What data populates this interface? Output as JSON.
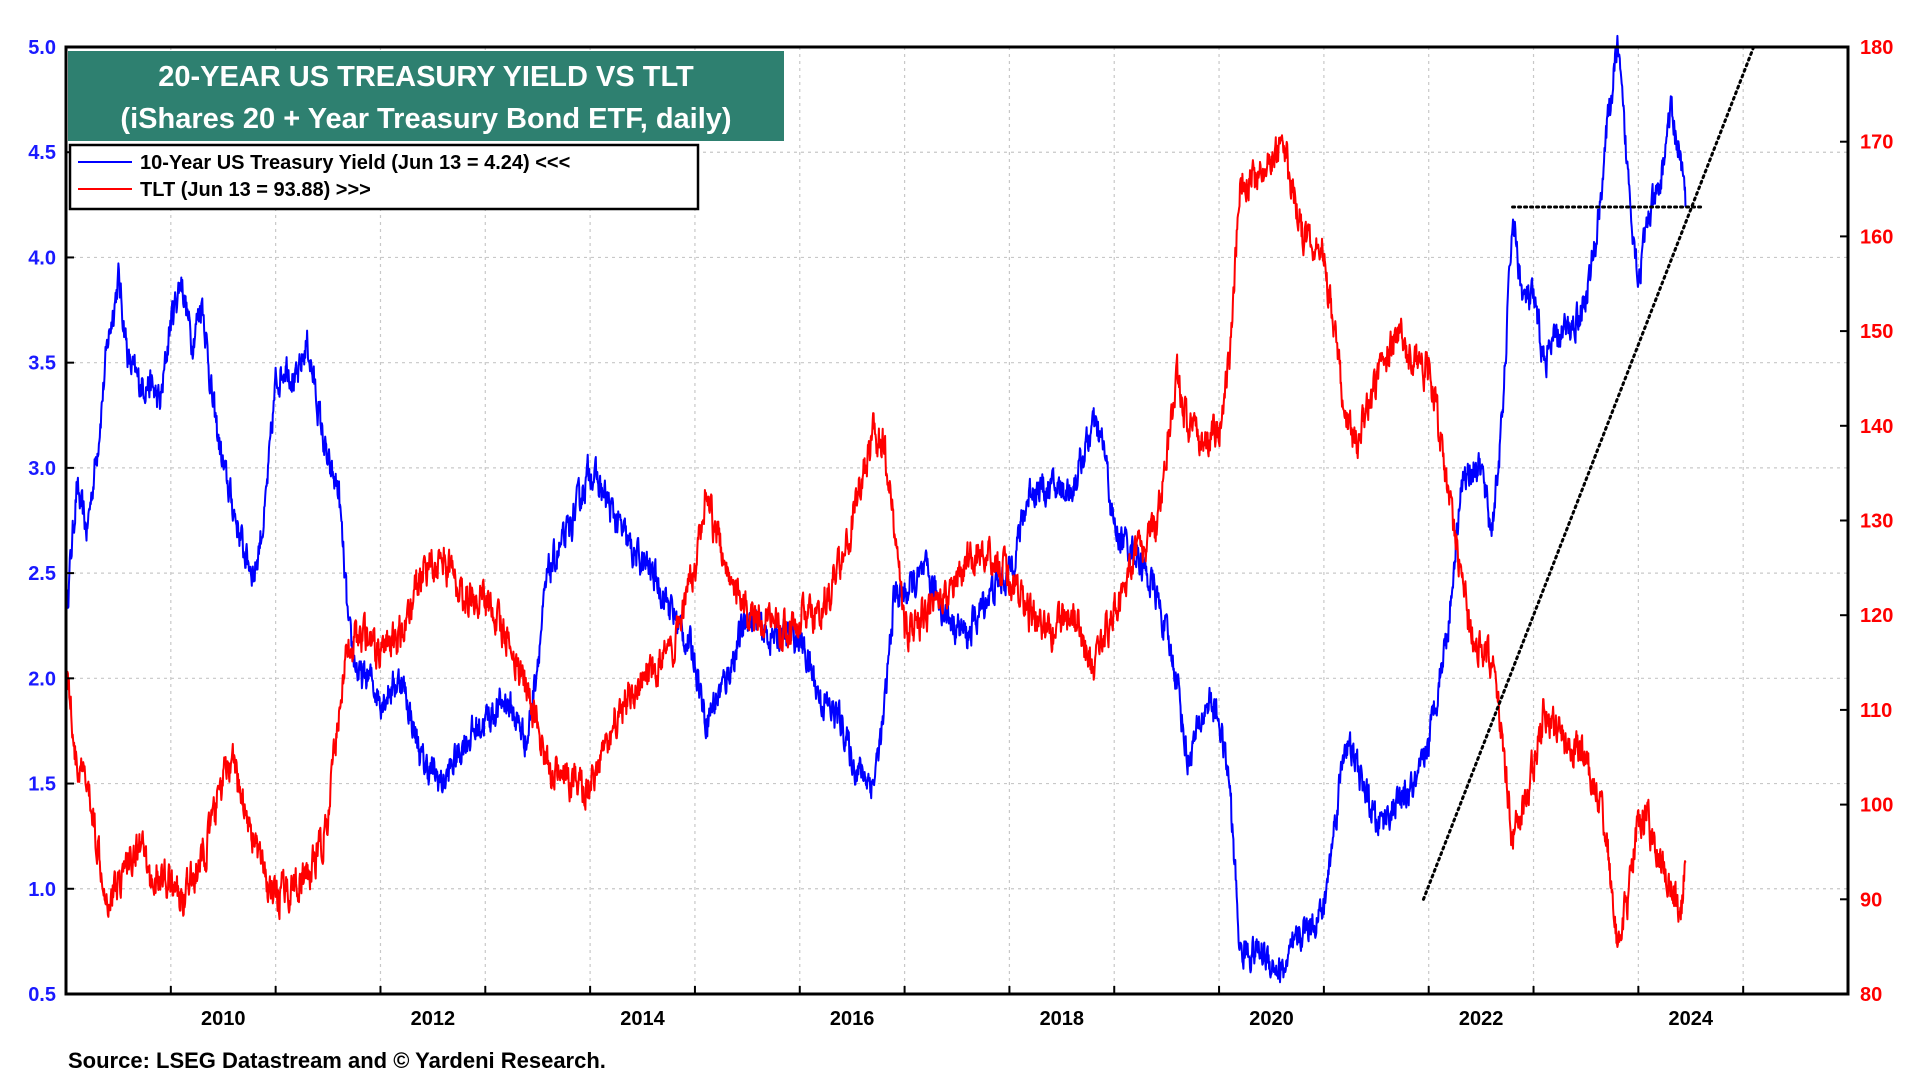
{
  "chart_data": {
    "type": "line",
    "title": "20-YEAR US TREASURY YIELD VS TLT",
    "subtitle": "(iShares 20 + Year Treasury Bond ETF, daily)",
    "source": "Source: LSEG Datastream and © Yardeni Research.",
    "x_range": [
      2009.0,
      2026.0
    ],
    "x_ticks": [
      "2010",
      "2012",
      "2014",
      "2016",
      "2018",
      "2020",
      "2022",
      "2024"
    ],
    "y_left": {
      "range": [
        0.5,
        5.0
      ],
      "ticks": [
        "0.5",
        "1.0",
        "1.5",
        "2.0",
        "2.5",
        "3.0",
        "3.5",
        "4.0",
        "4.5",
        "5.0"
      ]
    },
    "y_right": {
      "range": [
        80,
        180
      ],
      "ticks": [
        "80",
        "90",
        "100",
        "110",
        "120",
        "130",
        "140",
        "150",
        "160",
        "170",
        "180"
      ]
    },
    "grid": true,
    "legend": {
      "position": "top-left",
      "entries": [
        "10-Year US Treasury Yield (Jun 13 = 4.24) <<<",
        "TLT (Jun 13 = 93.88) >>>"
      ]
    },
    "colors": {
      "yield": "#0000ff",
      "tlt": "#ff0000",
      "title_bg": "#2e8070",
      "trend": "#000000"
    },
    "series": [
      {
        "name": "10-Year US Treasury Yield",
        "axis": "left",
        "x": [
          2009.0,
          2009.1,
          2009.2,
          2009.3,
          2009.4,
          2009.5,
          2009.6,
          2009.7,
          2009.8,
          2009.9,
          2010.0,
          2010.1,
          2010.2,
          2010.3,
          2010.4,
          2010.5,
          2010.6,
          2010.7,
          2010.8,
          2010.9,
          2011.0,
          2011.1,
          2011.2,
          2011.3,
          2011.4,
          2011.5,
          2011.6,
          2011.7,
          2011.8,
          2011.9,
          2012.0,
          2012.2,
          2012.4,
          2012.6,
          2012.8,
          2013.0,
          2013.2,
          2013.4,
          2013.6,
          2013.8,
          2014.0,
          2014.2,
          2014.4,
          2014.6,
          2014.8,
          2015.0,
          2015.1,
          2015.3,
          2015.5,
          2015.7,
          2015.9,
          2016.0,
          2016.2,
          2016.4,
          2016.5,
          2016.7,
          2016.8,
          2016.9,
          2017.0,
          2017.2,
          2017.4,
          2017.6,
          2017.8,
          2018.0,
          2018.2,
          2018.4,
          2018.6,
          2018.8,
          2018.9,
          2019.0,
          2019.2,
          2019.4,
          2019.6,
          2019.7,
          2019.9,
          2020.0,
          2020.1,
          2020.2,
          2020.4,
          2020.6,
          2020.8,
          2021.0,
          2021.2,
          2021.3,
          2021.5,
          2021.7,
          2021.9,
          2022.0,
          2022.1,
          2022.2,
          2022.3,
          2022.4,
          2022.5,
          2022.6,
          2022.7,
          2022.8,
          2022.9,
          2023.0,
          2023.1,
          2023.2,
          2023.4,
          2023.5,
          2023.6,
          2023.7,
          2023.8,
          2023.9,
          2024.0,
          2024.1,
          2024.2,
          2024.3,
          2024.4,
          2024.45
        ],
        "values": [
          2.3,
          2.9,
          2.7,
          3.1,
          3.6,
          3.9,
          3.5,
          3.4,
          3.4,
          3.3,
          3.7,
          3.9,
          3.6,
          3.8,
          3.3,
          3.0,
          2.8,
          2.6,
          2.5,
          2.8,
          3.4,
          3.5,
          3.4,
          3.6,
          3.3,
          3.0,
          2.9,
          2.2,
          2.0,
          2.0,
          1.9,
          2.0,
          1.6,
          1.5,
          1.7,
          1.8,
          1.9,
          1.7,
          2.5,
          2.7,
          3.0,
          2.8,
          2.6,
          2.5,
          2.3,
          2.1,
          1.8,
          2.0,
          2.3,
          2.2,
          2.2,
          2.2,
          1.9,
          1.8,
          1.6,
          1.5,
          1.8,
          2.4,
          2.4,
          2.5,
          2.3,
          2.2,
          2.4,
          2.5,
          2.9,
          2.9,
          2.9,
          3.2,
          3.1,
          2.7,
          2.6,
          2.4,
          2.0,
          1.6,
          1.9,
          1.8,
          1.5,
          0.7,
          0.7,
          0.6,
          0.8,
          0.9,
          1.7,
          1.6,
          1.3,
          1.4,
          1.5,
          1.7,
          2.0,
          2.3,
          2.9,
          3.0,
          3.0,
          2.7,
          3.2,
          4.2,
          3.8,
          3.8,
          3.5,
          3.6,
          3.7,
          3.8,
          4.1,
          4.6,
          5.0,
          4.4,
          3.9,
          4.2,
          4.3,
          4.7,
          4.5,
          4.24
        ]
      },
      {
        "name": "TLT",
        "axis": "right",
        "x": [
          2009.0,
          2009.1,
          2009.2,
          2009.3,
          2009.4,
          2009.5,
          2009.6,
          2009.7,
          2009.8,
          2009.9,
          2010.0,
          2010.1,
          2010.2,
          2010.3,
          2010.4,
          2010.5,
          2010.6,
          2010.7,
          2010.8,
          2010.9,
          2011.0,
          2011.1,
          2011.2,
          2011.3,
          2011.4,
          2011.5,
          2011.6,
          2011.7,
          2011.8,
          2011.9,
          2012.0,
          2012.2,
          2012.4,
          2012.6,
          2012.8,
          2013.0,
          2013.2,
          2013.4,
          2013.6,
          2013.8,
          2014.0,
          2014.2,
          2014.4,
          2014.6,
          2014.8,
          2015.0,
          2015.1,
          2015.3,
          2015.5,
          2015.7,
          2015.9,
          2016.0,
          2016.2,
          2016.4,
          2016.5,
          2016.7,
          2016.8,
          2016.9,
          2017.0,
          2017.2,
          2017.4,
          2017.6,
          2017.8,
          2018.0,
          2018.2,
          2018.4,
          2018.6,
          2018.8,
          2018.9,
          2019.0,
          2019.2,
          2019.4,
          2019.6,
          2019.7,
          2019.9,
          2020.0,
          2020.1,
          2020.2,
          2020.4,
          2020.6,
          2020.8,
          2021.0,
          2021.2,
          2021.3,
          2021.5,
          2021.7,
          2021.9,
          2022.0,
          2022.1,
          2022.2,
          2022.3,
          2022.4,
          2022.5,
          2022.6,
          2022.7,
          2022.8,
          2022.9,
          2023.0,
          2023.1,
          2023.2,
          2023.4,
          2023.5,
          2023.6,
          2023.7,
          2023.8,
          2023.9,
          2024.0,
          2024.1,
          2024.2,
          2024.3,
          2024.4,
          2024.45
        ],
        "values": [
          116,
          104,
          102,
          96,
          90,
          92,
          94,
          96,
          92,
          92,
          92,
          90,
          92,
          94,
          98,
          103,
          104,
          100,
          96,
          92,
          90,
          91,
          92,
          92,
          95,
          98,
          110,
          117,
          118,
          117,
          116,
          118,
          125,
          126,
          122,
          122,
          118,
          112,
          104,
          102,
          102,
          108,
          112,
          114,
          116,
          125,
          132,
          126,
          120,
          120,
          118,
          120,
          120,
          126,
          130,
          139,
          138,
          130,
          118,
          120,
          122,
          126,
          126,
          124,
          120,
          118,
          120,
          114,
          118,
          120,
          126,
          129,
          145,
          140,
          138,
          140,
          146,
          166,
          166,
          170,
          160,
          158,
          142,
          138,
          144,
          150,
          146,
          146,
          140,
          132,
          125,
          118,
          117,
          115,
          108,
          96,
          100,
          104,
          110,
          108,
          106,
          104,
          102,
          96,
          86,
          90,
          99,
          98,
          94,
          92,
          88,
          93.88
        ]
      }
    ],
    "trend_lines": [
      {
        "description": "dotted horizontal at prior high",
        "x": [
          2022.8,
          2024.6
        ],
        "axis": "left",
        "values": [
          4.24,
          4.24
        ]
      },
      {
        "description": "dotted rising trend line",
        "x": [
          2021.95,
          2025.1
        ],
        "axis": "left",
        "values": [
          0.95,
          5.0
        ]
      }
    ]
  }
}
